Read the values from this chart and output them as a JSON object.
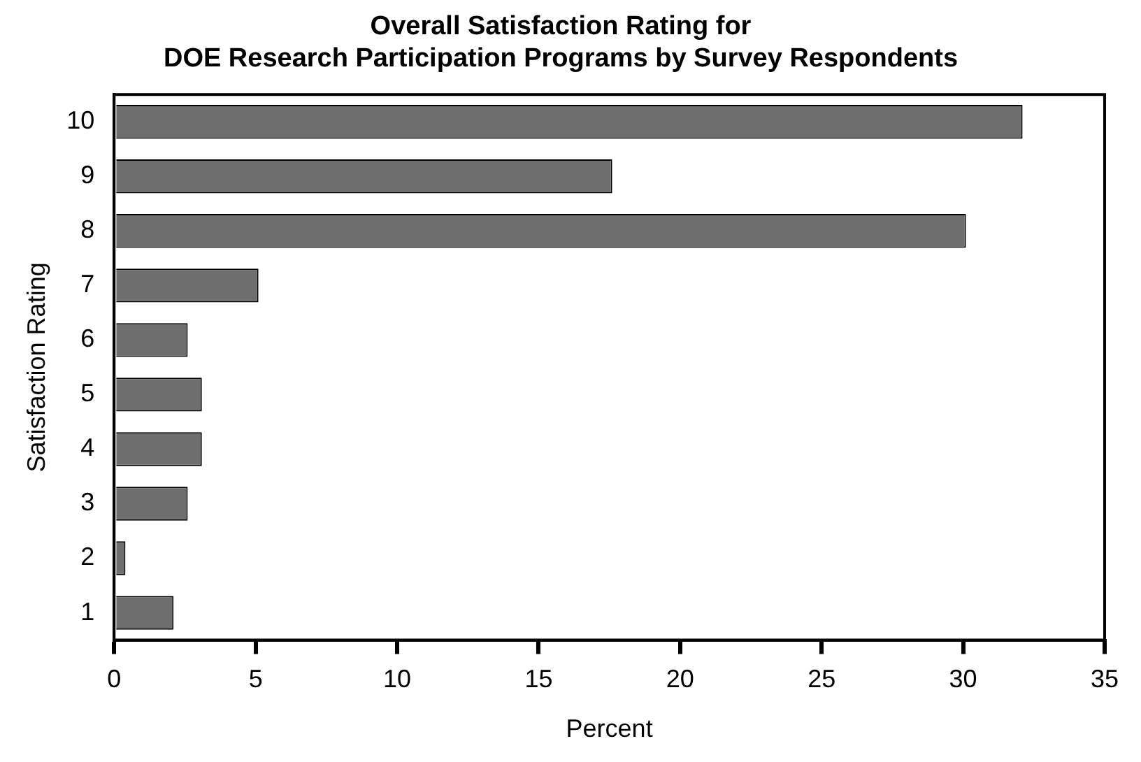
{
  "chart_data": {
    "type": "bar",
    "orientation": "horizontal",
    "title": "Overall Satisfaction Rating for\nDOE Research Participation Programs by Survey Respondents",
    "xlabel": "Percent",
    "ylabel": "Satisfaction Rating",
    "categories": [
      "10",
      "9",
      "8",
      "7",
      "6",
      "5",
      "4",
      "3",
      "2",
      "1"
    ],
    "values": [
      32.1,
      17.6,
      30.1,
      5.1,
      2.6,
      3.1,
      3.1,
      2.6,
      0.4,
      2.1
    ],
    "color": "#6e6e6e",
    "xlim": [
      0,
      35
    ],
    "xticks": [
      0,
      5,
      10,
      15,
      20,
      25,
      30,
      35
    ],
    "grid": false,
    "legend": false
  }
}
